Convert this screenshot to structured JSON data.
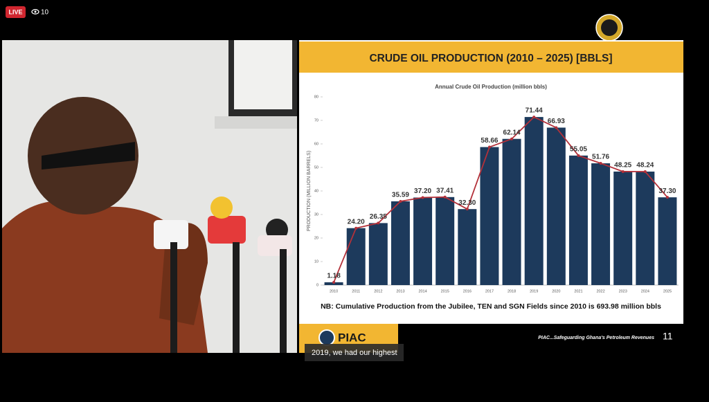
{
  "stream": {
    "live_badge": "LIVE",
    "viewers": "10",
    "caption": "2019, we had our highest"
  },
  "slide": {
    "title": "CRUDE OIL PRODUCTION (2010 – 2025) [BBLS]",
    "note": "NB: Cumulative Production from the Jubilee, TEN and SGN Fields since 2010 is 693.98 million bbls",
    "logo_text": "PIAC",
    "tagline": "PIAC...Safeguarding Ghana's Petroleum Revenues",
    "page_number": "11"
  },
  "chart_data": {
    "type": "bar",
    "title": "Annual Crude Oil Production (million bbls)",
    "y_label": "PRODUCTION (MILLION BARRELS)",
    "categories": [
      "2010",
      "2011",
      "2012",
      "2013",
      "2014",
      "2015",
      "2016",
      "2017",
      "2018",
      "2019",
      "2020",
      "2021",
      "2022",
      "2023",
      "2024",
      "2025"
    ],
    "values": [
      1.18,
      24.2,
      26.35,
      35.59,
      37.2,
      37.41,
      32.3,
      58.66,
      62.14,
      71.44,
      66.93,
      55.05,
      51.76,
      48.25,
      48.24,
      37.3
    ],
    "value_labels": [
      "1.18",
      "24.20",
      "26.35",
      "35.59",
      "37.20",
      "37.41",
      "32.30",
      "58.66",
      "62.14",
      "71.44",
      "66.93",
      "55.05",
      "51.76",
      "48.25",
      "48.24",
      "37.30"
    ],
    "color": "#1d3a5c",
    "overlay_line": true,
    "line_color": "#b3313a",
    "ylim": [
      0,
      80
    ],
    "yticks": [
      0,
      10,
      20,
      30,
      40,
      50,
      60,
      70,
      80
    ],
    "grid": false
  }
}
